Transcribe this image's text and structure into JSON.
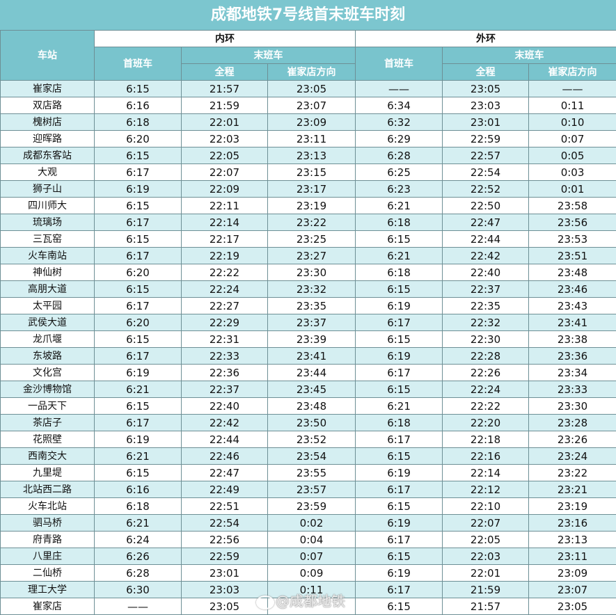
{
  "title": "成都地铁7号线首末班车时刻",
  "header": {
    "station": "车站",
    "inner": "内环",
    "outer": "外环",
    "first": "首班车",
    "last": "末班车",
    "full": "全程",
    "dir": "崔家店方向"
  },
  "rows": [
    [
      "崔家店",
      "6:15",
      "21:57",
      "23:05",
      "——",
      "23:05",
      "——"
    ],
    [
      "双店路",
      "6:16",
      "21:59",
      "23:07",
      "6:34",
      "23:03",
      "0:11"
    ],
    [
      "槐树店",
      "6:18",
      "22:01",
      "23:09",
      "6:32",
      "23:01",
      "0:10"
    ],
    [
      "迎晖路",
      "6:20",
      "22:03",
      "23:11",
      "6:29",
      "22:59",
      "0:07"
    ],
    [
      "成都东客站",
      "6:15",
      "22:05",
      "23:13",
      "6:28",
      "22:57",
      "0:05"
    ],
    [
      "大观",
      "6:17",
      "22:07",
      "23:15",
      "6:25",
      "22:54",
      "0:03"
    ],
    [
      "狮子山",
      "6:19",
      "22:09",
      "23:17",
      "6:23",
      "22:52",
      "0:01"
    ],
    [
      "四川师大",
      "6:15",
      "22:11",
      "23:19",
      "6:21",
      "22:50",
      "23:58"
    ],
    [
      "琉璃场",
      "6:17",
      "22:14",
      "23:22",
      "6:18",
      "22:47",
      "23:56"
    ],
    [
      "三瓦窑",
      "6:15",
      "22:17",
      "23:25",
      "6:15",
      "22:44",
      "23:53"
    ],
    [
      "火车南站",
      "6:17",
      "22:19",
      "23:27",
      "6:21",
      "22:42",
      "23:51"
    ],
    [
      "神仙树",
      "6:20",
      "22:22",
      "23:30",
      "6:18",
      "22:40",
      "23:48"
    ],
    [
      "高朋大道",
      "6:15",
      "22:24",
      "23:32",
      "6:15",
      "22:37",
      "23:46"
    ],
    [
      "太平园",
      "6:17",
      "22:27",
      "23:35",
      "6:19",
      "22:35",
      "23:43"
    ],
    [
      "武侯大道",
      "6:20",
      "22:29",
      "23:37",
      "6:17",
      "22:32",
      "23:41"
    ],
    [
      "龙爪堰",
      "6:15",
      "22:31",
      "23:39",
      "6:15",
      "22:30",
      "23:38"
    ],
    [
      "东坡路",
      "6:17",
      "22:33",
      "23:41",
      "6:19",
      "22:28",
      "23:36"
    ],
    [
      "文化宫",
      "6:19",
      "22:36",
      "23:44",
      "6:17",
      "22:26",
      "23:34"
    ],
    [
      "金沙博物馆",
      "6:21",
      "22:37",
      "23:45",
      "6:15",
      "22:24",
      "23:33"
    ],
    [
      "一品天下",
      "6:15",
      "22:40",
      "23:48",
      "6:21",
      "22:22",
      "23:30"
    ],
    [
      "茶店子",
      "6:17",
      "22:42",
      "23:50",
      "6:18",
      "22:20",
      "23:28"
    ],
    [
      "花照壁",
      "6:19",
      "22:44",
      "23:52",
      "6:17",
      "22:18",
      "23:26"
    ],
    [
      "西南交大",
      "6:21",
      "22:46",
      "23:54",
      "6:15",
      "22:16",
      "23:24"
    ],
    [
      "九里堤",
      "6:15",
      "22:47",
      "23:55",
      "6:19",
      "22:14",
      "23:22"
    ],
    [
      "北站西二路",
      "6:16",
      "22:49",
      "23:57",
      "6:17",
      "22:12",
      "23:21"
    ],
    [
      "火车北站",
      "6:18",
      "22:51",
      "23:59",
      "6:15",
      "22:10",
      "23:19"
    ],
    [
      "驷马桥",
      "6:21",
      "22:54",
      "0:02",
      "6:19",
      "22:07",
      "23:16"
    ],
    [
      "府青路",
      "6:24",
      "22:56",
      "0:04",
      "6:17",
      "22:05",
      "23:13"
    ],
    [
      "八里庄",
      "6:26",
      "22:59",
      "0:07",
      "6:15",
      "22:03",
      "23:11"
    ],
    [
      "二仙桥",
      "6:28",
      "23:01",
      "0:09",
      "6:19",
      "22:01",
      "23:09"
    ],
    [
      "理工大学",
      "6:30",
      "23:03",
      "0:11",
      "6:17",
      "21:59",
      "23:07"
    ],
    [
      "崔家店",
      "——",
      "23:05",
      "",
      "6:15",
      "21:57",
      "23:05"
    ]
  ],
  "watermark": {
    "icon": "weibo-eye-icon",
    "text": "@成都地铁"
  }
}
